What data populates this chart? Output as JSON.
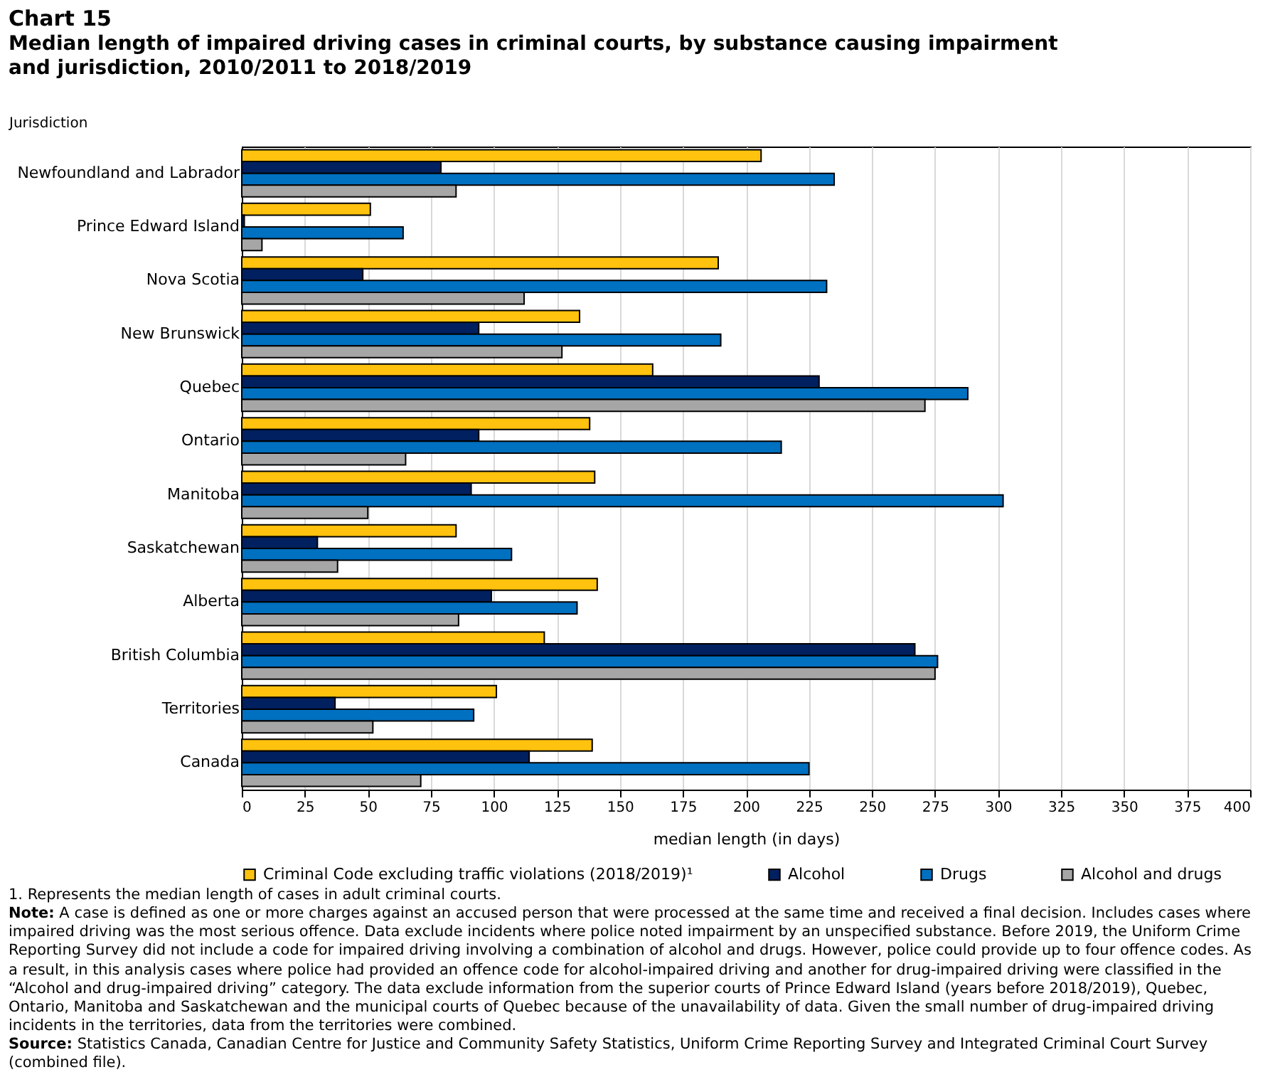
{
  "chart_data": {
    "type": "bar",
    "orientation": "horizontal",
    "title": "Chart 15",
    "subtitle": "Median length of impaired driving cases in criminal courts, by substance causing impairment and jurisdiction, 2010/2011 to 2018/2019",
    "ylabel": "Jurisdiction",
    "xlabel": "median length (in days)",
    "categories": [
      "Newfoundland and Labrador",
      "Prince Edward Island",
      "Nova Scotia",
      "New Brunswick",
      "Quebec",
      "Ontario",
      "Manitoba",
      "Saskatchewan",
      "Alberta",
      "British Columbia",
      "Territories",
      "Canada"
    ],
    "series": [
      {
        "name": "Criminal Code excluding traffic violations (2018/2019)¹",
        "color": "#ffc20e",
        "values": [
          206,
          51,
          189,
          134,
          163,
          138,
          140,
          85,
          141,
          120,
          101,
          139
        ]
      },
      {
        "name": "Alcohol",
        "color": "#002060",
        "values": [
          79,
          1,
          48,
          94,
          229,
          94,
          91,
          30,
          99,
          267,
          37,
          114
        ]
      },
      {
        "name": "Drugs",
        "color": "#0070c0",
        "values": [
          235,
          64,
          232,
          190,
          288,
          214,
          302,
          107,
          133,
          276,
          92,
          225
        ]
      },
      {
        "name": "Alcohol and drugs",
        "color": "#a6a6a6",
        "values": [
          85,
          8,
          112,
          127,
          271,
          65,
          50,
          38,
          86,
          275,
          52,
          71
        ]
      }
    ],
    "xlim": [
      0,
      400
    ],
    "xticks": [
      0,
      25,
      50,
      75,
      100,
      125,
      150,
      175,
      200,
      225,
      250,
      275,
      300,
      325,
      350,
      375,
      400
    ],
    "grid": "x",
    "legend": "bottom",
    "annotations": [
      "1. Represents the median length of cases in adult criminal courts.",
      "Note: A case is defined as one or more charges against an accused person that were processed at the same time and received a final decision. Includes cases where impaired driving was the most serious offence. Data exclude incidents where police noted impairment by an unspecified substance. Before 2019, the Uniform Crime Reporting Survey did not include a code for impaired driving involving a combination of alcohol and drugs. However, police could provide up to four offence codes. As a result, in this analysis cases where police had provided an offence code for alcohol-impaired driving and another for drug-impaired driving were classified in the “Alcohol and drug-impaired driving” category. The data exclude information from the superior courts of Prince Edward Island (years before 2018/2019), Quebec, Ontario, Manitoba and Saskatchewan and the municipal courts of Quebec because of the unavailability of data. Given the small number of drug-impaired driving incidents in the territories, data from the territories were combined.",
      "Source: Statistics Canada, Canadian Centre for Justice and Community Safety Statistics, Uniform Crime Reporting Survey and Integrated Criminal Court Survey (combined file)."
    ]
  }
}
